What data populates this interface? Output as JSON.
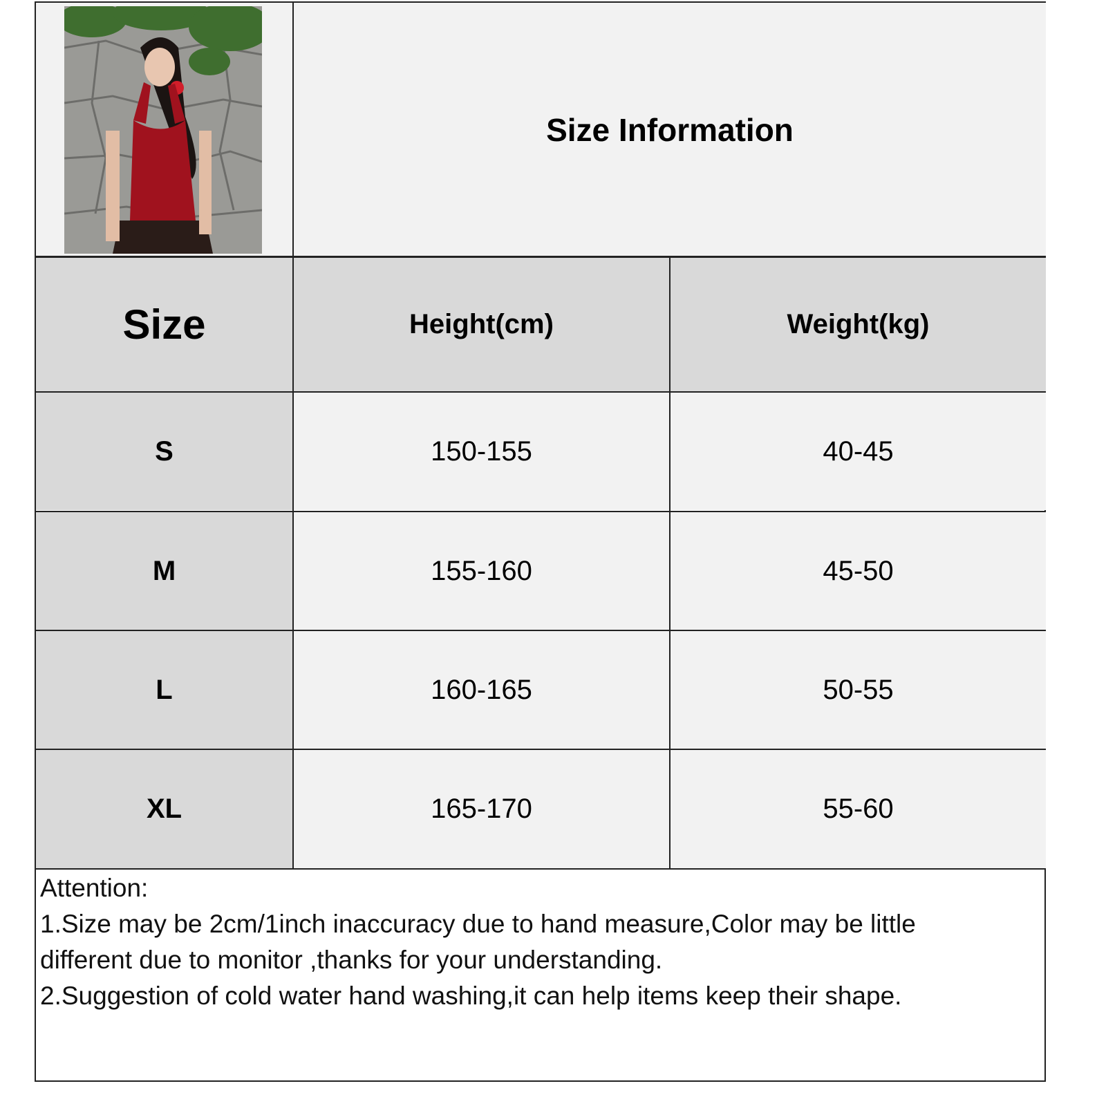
{
  "title": "Size Information",
  "colors": {
    "header_bg": "#d9d9d9",
    "cell_bg": "#f2f2f2",
    "border": "#222222"
  },
  "photo": {
    "description_icon": "model-photo"
  },
  "table": {
    "headers": [
      "Size",
      "Height(cm)",
      "Weight(kg)"
    ],
    "rows": [
      {
        "size": "S",
        "height": "150-155",
        "weight": "40-45"
      },
      {
        "size": "M",
        "height": "155-160",
        "weight": "45-50"
      },
      {
        "size": "L",
        "height": "160-165",
        "weight": "50-55"
      },
      {
        "size": "XL",
        "height": "165-170",
        "weight": "55-60"
      }
    ]
  },
  "notes": {
    "heading": "Attention:",
    "line1": "1.Size may be 2cm/1inch inaccuracy due to hand measure,Color may be little",
    "line2": "different due to monitor ,thanks for your understanding.",
    "line3": "2.Suggestion of cold water hand washing,it can help items keep their shape."
  }
}
